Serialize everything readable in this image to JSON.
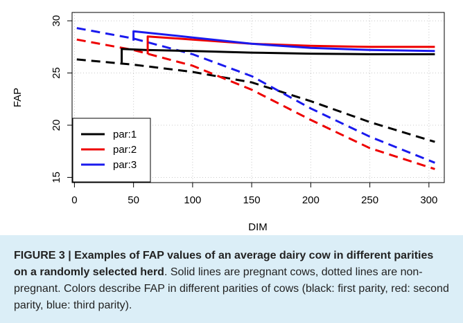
{
  "chart_data": {
    "type": "line",
    "xlabel": "DIM",
    "ylabel": "FAP",
    "xlim": [
      0,
      305
    ],
    "ylim": [
      15,
      30
    ],
    "x_ticks": [
      "0",
      "50",
      "100",
      "150",
      "200",
      "250",
      "300"
    ],
    "y_ticks": [
      "15",
      "20",
      "25",
      "30"
    ],
    "grid": true,
    "legend_position": "bottom-left",
    "legend": [
      "par:1",
      "par:2",
      "par:3"
    ],
    "series": [
      {
        "name": "par:1",
        "status": "non-pregnant",
        "color": "#000000",
        "dash": true,
        "x": [
          2,
          50,
          100,
          150,
          200,
          250,
          305
        ],
        "y": [
          26.3,
          25.8,
          25.1,
          24.1,
          22.3,
          20.3,
          18.4
        ]
      },
      {
        "name": "par:2",
        "status": "non-pregnant",
        "color": "#ee0000",
        "dash": true,
        "x": [
          2,
          50,
          100,
          150,
          200,
          250,
          305
        ],
        "y": [
          28.2,
          27.2,
          25.7,
          23.4,
          20.5,
          17.8,
          15.8
        ]
      },
      {
        "name": "par:3",
        "status": "non-pregnant",
        "color": "#1a1aee",
        "dash": true,
        "x": [
          2,
          50,
          100,
          150,
          200,
          250,
          305
        ],
        "y": [
          29.3,
          28.3,
          26.8,
          24.7,
          21.6,
          18.9,
          16.4
        ]
      },
      {
        "name": "par:1",
        "status": "pregnant",
        "color": "#000000",
        "dash": false,
        "x": [
          40,
          40,
          60,
          100,
          150,
          200,
          250,
          305
        ],
        "y": [
          26.0,
          27.3,
          27.2,
          27.1,
          26.95,
          26.85,
          26.8,
          26.8
        ]
      },
      {
        "name": "par:2",
        "status": "pregnant",
        "color": "#ee0000",
        "dash": false,
        "x": [
          62,
          62,
          100,
          150,
          200,
          250,
          305
        ],
        "y": [
          26.8,
          28.5,
          28.2,
          27.8,
          27.6,
          27.5,
          27.5
        ]
      },
      {
        "name": "par:3",
        "status": "pregnant",
        "color": "#1a1aee",
        "dash": false,
        "x": [
          50,
          50,
          100,
          150,
          200,
          250,
          305
        ],
        "y": [
          28.1,
          29.0,
          28.4,
          27.8,
          27.4,
          27.2,
          27.1
        ]
      }
    ]
  },
  "caption": {
    "label": "FIGURE 3 | ",
    "title": "Examples of FAP values of an average dairy cow in different parities on a randomly selected herd",
    "body": ". Solid lines are pregnant cows, dotted lines are non-pregnant. Colors describe FAP in different parities of cows (black: first parity, red: second parity, blue: third parity)."
  }
}
